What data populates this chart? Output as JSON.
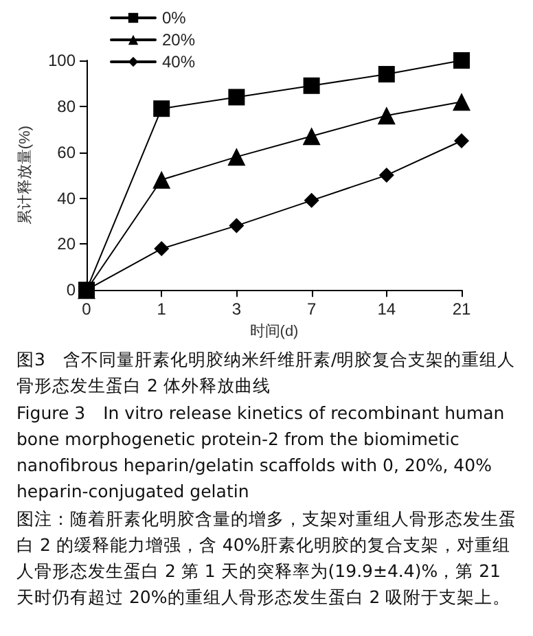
{
  "chart_data": {
    "type": "line",
    "xlabel": "时间(d)",
    "ylabel": "累计释放量(%)",
    "categories": [
      "0",
      "1",
      "3",
      "7",
      "14",
      "21"
    ],
    "series": [
      {
        "name": "0%",
        "color": "#000000",
        "marker": "square",
        "values": [
          0,
          79,
          84,
          89,
          94,
          100
        ]
      },
      {
        "name": "20%",
        "color": "#000000",
        "marker": "triangle",
        "values": [
          0,
          48,
          58,
          67,
          76,
          82
        ]
      },
      {
        "name": "40%",
        "color": "#000000",
        "marker": "diamond",
        "values": [
          0,
          18,
          28,
          39,
          50,
          65
        ]
      }
    ],
    "ylim": [
      0,
      100
    ],
    "yticks": [
      0,
      20,
      40,
      60,
      80,
      100
    ],
    "grid": false,
    "legend": "top left",
    "line_style": "solid",
    "annotations": [
      "图3　含不同量肝素化明胶纳米纤维肝素/明胶复合支架的重组人骨形态发生蛋白 2 体外释放曲线",
      "Figure 3　In vitro release kinetics of recombinant human bone morphogenetic protein-2 from the biomimetic nanofibrous heparin/gelatin scaffolds with 0, 20%, 40% heparin-conjugated gelatin",
      "图注：随着肝素化明胶含量的增多，支架对重组人骨形态发生蛋白 2 的缓释能力增强，含 40%肝素化明胶的复合支架，对重组人骨形态发生蛋白 2 第 1 天的突释率为(19.9±4.4)%，第 21 天时仍有超过 20%的重组人骨形态发生蛋白 2 吸附于支架上。"
    ]
  }
}
